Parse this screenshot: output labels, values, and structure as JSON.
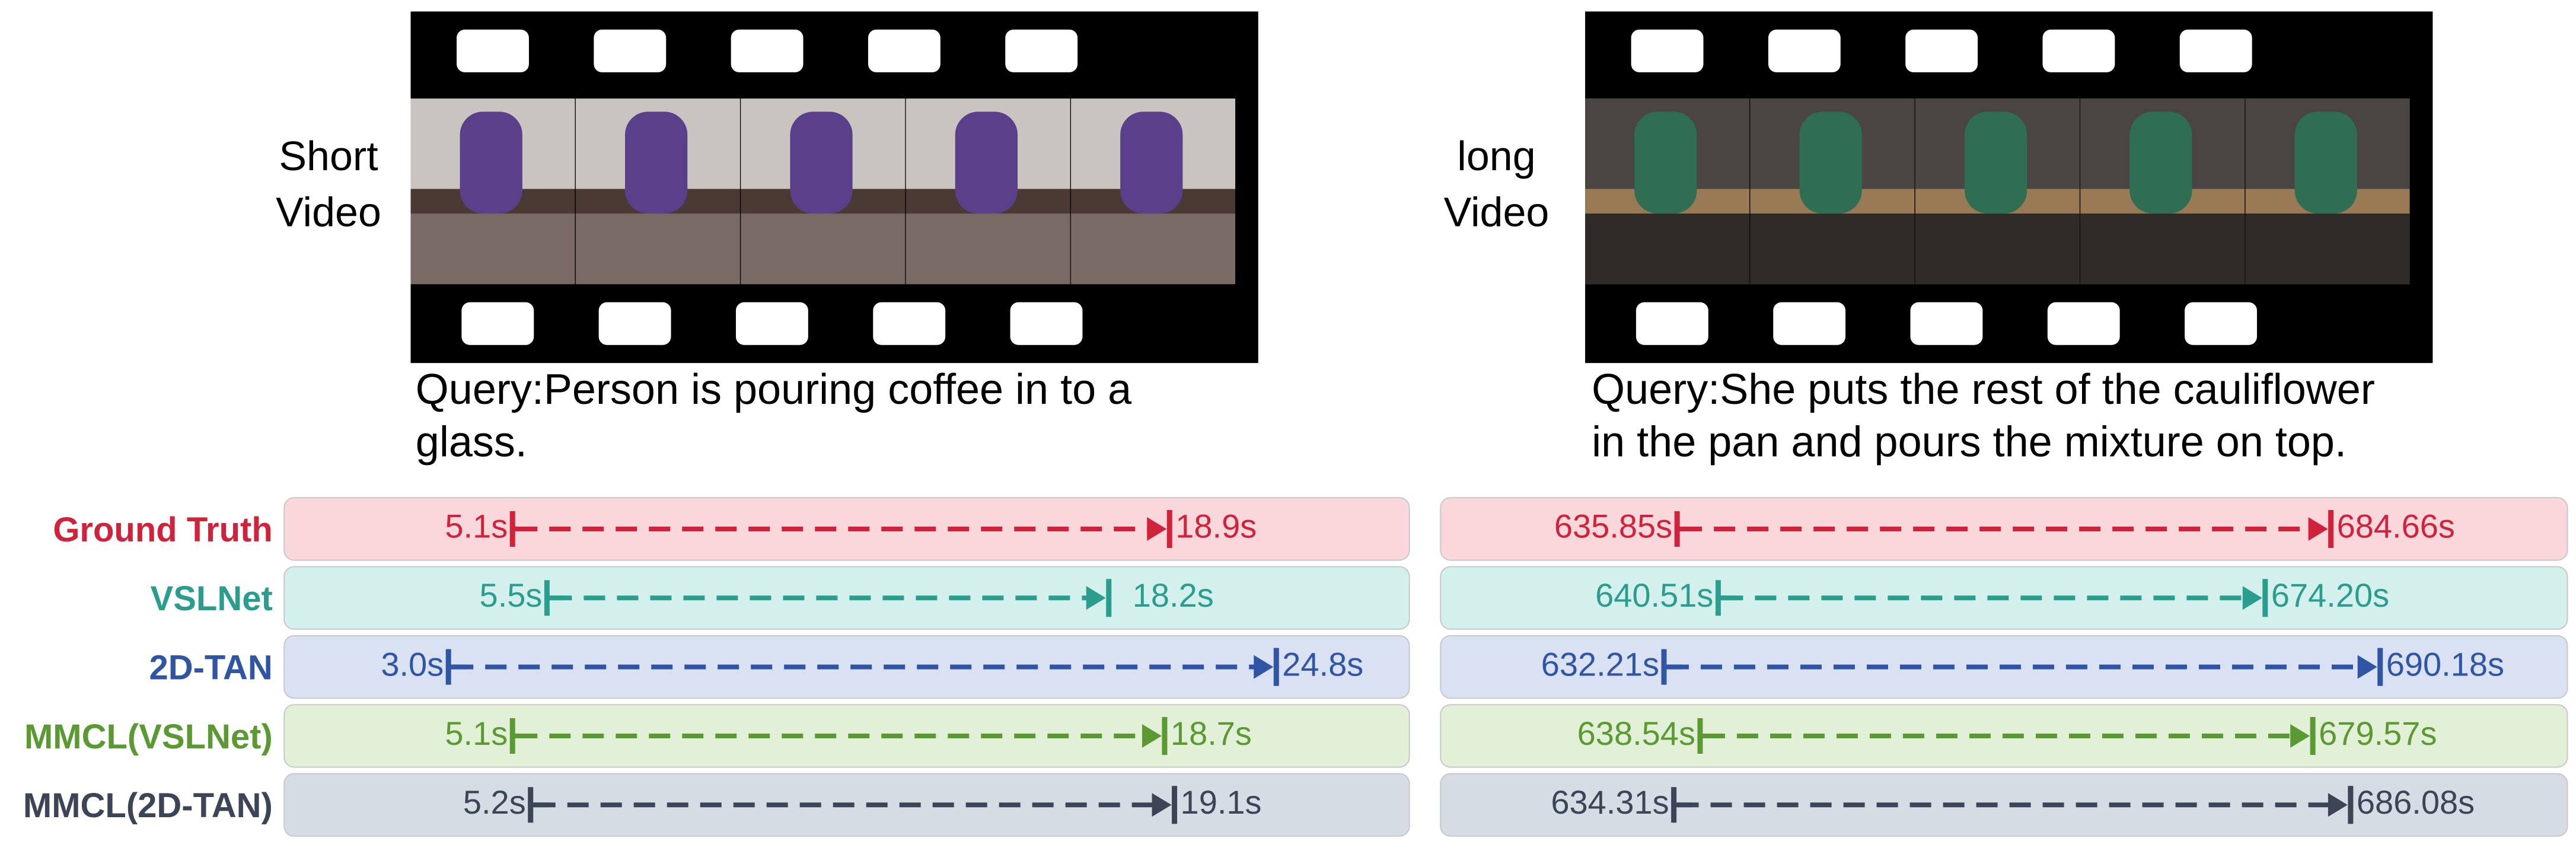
{
  "methods": [
    "Ground Truth",
    "VSLNet",
    "2D-TAN",
    "MMCL(VSLNet)",
    "MMCL(2D-TAN)"
  ],
  "panels": [
    {
      "video_label": [
        "Short",
        "Video"
      ],
      "query": [
        "Query:Person is pouring coffee in to a",
        "glass."
      ],
      "rows": [
        {
          "start": "5.1s",
          "end": "18.9s"
        },
        {
          "start": "5.5s",
          "end": "18.2s"
        },
        {
          "start": "3.0s",
          "end": "24.8s"
        },
        {
          "start": "5.1s",
          "end": "18.7s"
        },
        {
          "start": "5.2s",
          "end": "19.1s"
        }
      ]
    },
    {
      "video_label": [
        "long",
        "Video"
      ],
      "query": [
        "Query:She puts the rest of the cauliflower",
        "in the pan and pours the mixture on top."
      ],
      "rows": [
        {
          "start": "635.85s",
          "end": "684.66s"
        },
        {
          "start": "640.51s",
          "end": "674.20s"
        },
        {
          "start": "632.21s",
          "end": "690.18s"
        },
        {
          "start": "638.54s",
          "end": "679.57s"
        },
        {
          "start": "634.31s",
          "end": "686.08s"
        }
      ]
    }
  ]
}
